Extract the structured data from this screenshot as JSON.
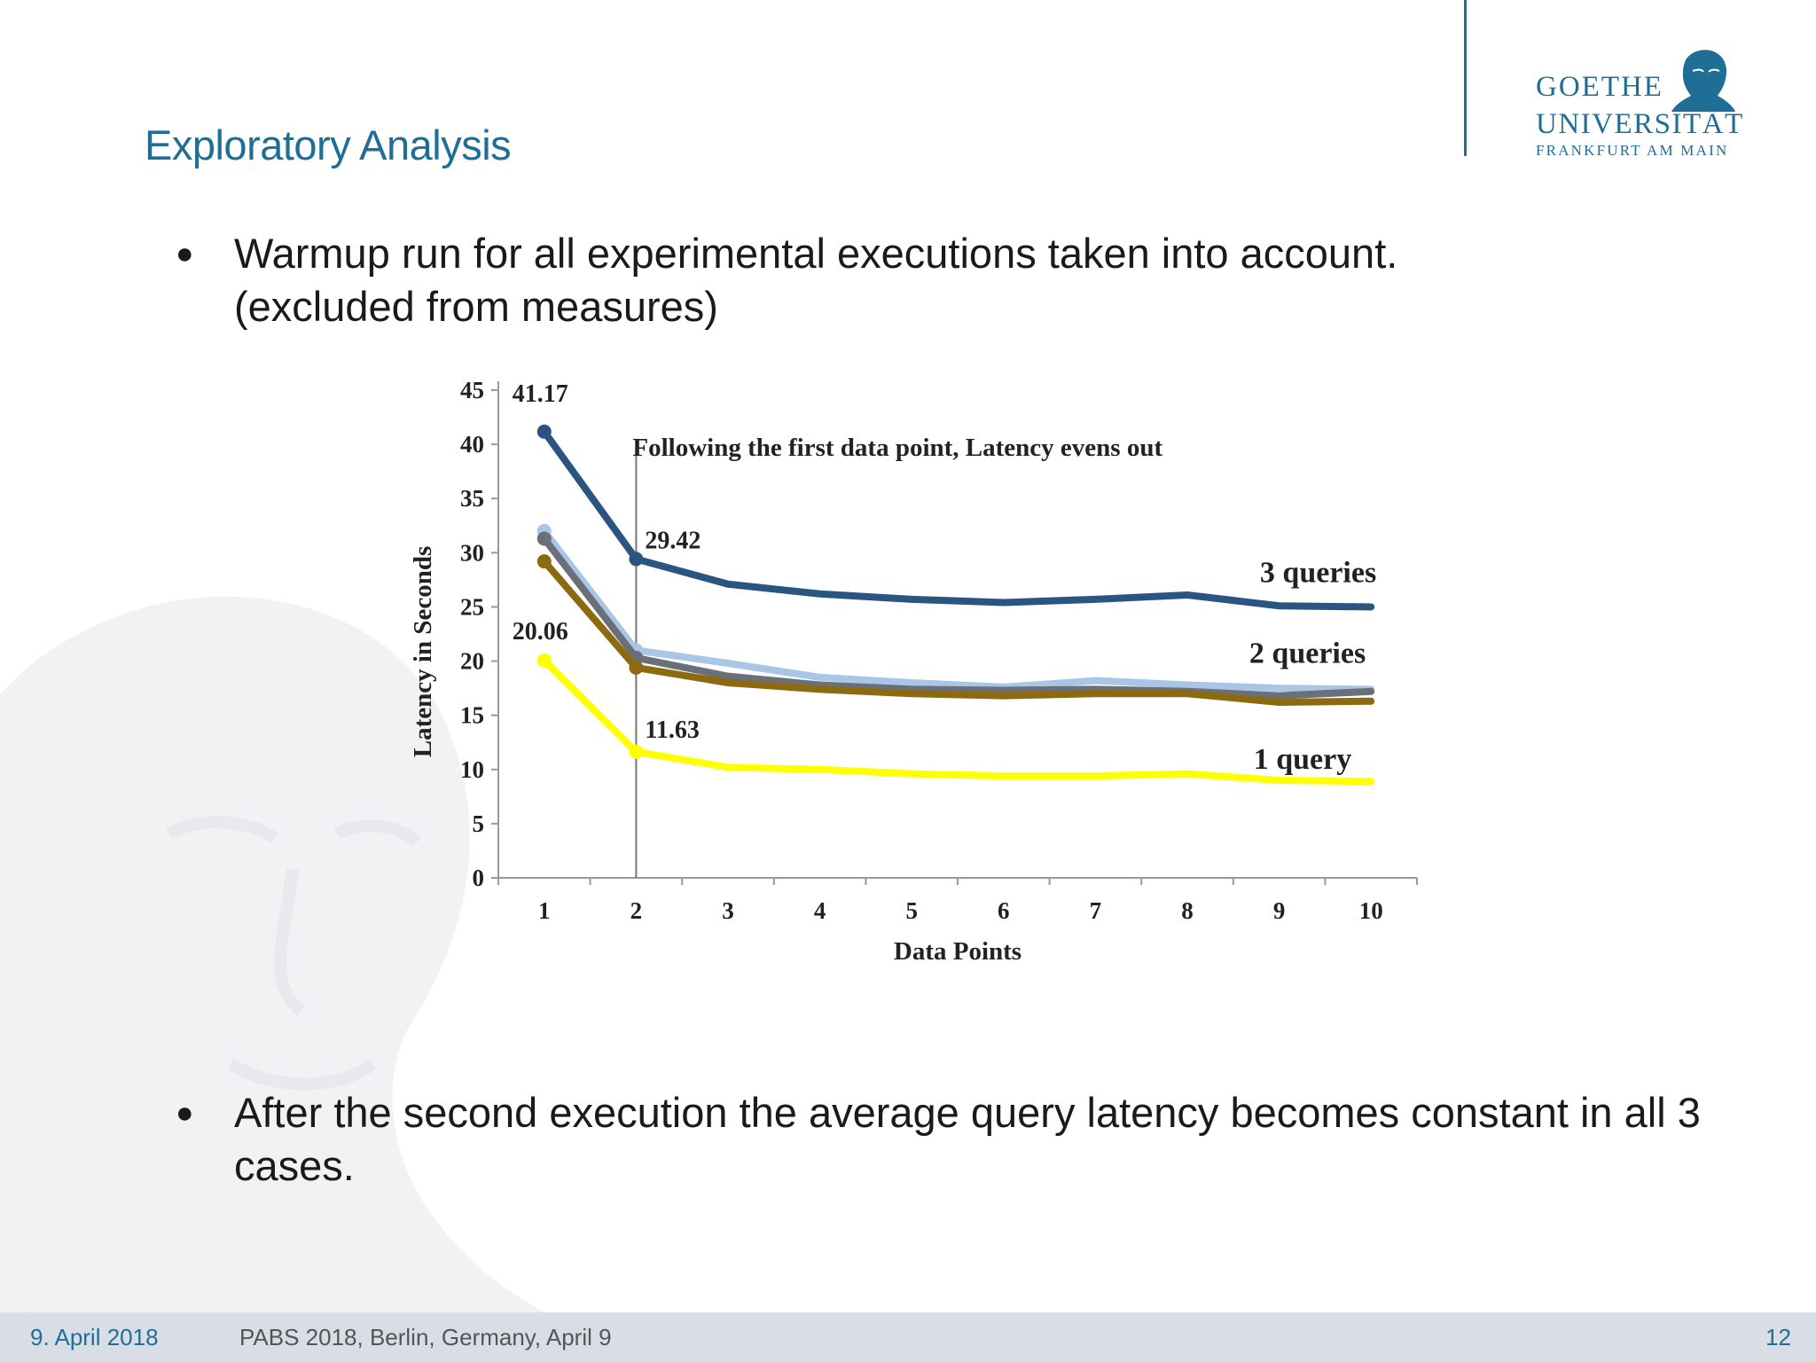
{
  "slide": {
    "title": "Exploratory Analysis",
    "bullets": [
      "Warmup run for all experimental executions taken into account. (excluded from measures)",
      "After the second execution the average query latency becomes constant in all 3 cases."
    ],
    "logo": {
      "line1": "GOETHE",
      "line2": "UNIVERSITÄT",
      "line3": "FRANKFURT AM MAIN"
    },
    "footer": {
      "date": "9. April 2018",
      "conference": "PABS 2018, Berlin, Germany, April 9",
      "page": "12"
    },
    "colors": {
      "accent": "#1f6e96",
      "footer_bg": "#d8dde6"
    }
  },
  "chart_data": {
    "type": "line",
    "title": "",
    "xlabel": "Data Points",
    "ylabel": "Latency in Seconds",
    "x": [
      1,
      2,
      3,
      4,
      5,
      6,
      7,
      8,
      9,
      10
    ],
    "ylim": [
      0,
      45
    ],
    "yticks": [
      0,
      5,
      10,
      15,
      20,
      25,
      30,
      35,
      40,
      45
    ],
    "grid": false,
    "series": [
      {
        "name": "3 queries",
        "color": "#2a5580",
        "values": [
          41.17,
          29.42,
          27.1,
          26.2,
          25.7,
          25.4,
          25.7,
          26.1,
          25.1,
          25.0
        ]
      },
      {
        "color": "#a9c6e6",
        "values": [
          32.0,
          21.0,
          19.8,
          18.5,
          18.0,
          17.6,
          18.2,
          17.8,
          17.5,
          17.4
        ]
      },
      {
        "color": "#6a6f78",
        "values": [
          31.3,
          20.3,
          18.6,
          17.8,
          17.4,
          17.3,
          17.4,
          17.2,
          16.8,
          17.2
        ]
      },
      {
        "color": "#8b6a10",
        "values": [
          29.2,
          19.4,
          18.0,
          17.4,
          17.0,
          16.8,
          17.0,
          17.0,
          16.2,
          16.3
        ]
      },
      {
        "name": "1 query",
        "color": "#ffff00",
        "values": [
          20.06,
          11.63,
          10.2,
          10.0,
          9.6,
          9.4,
          9.4,
          9.6,
          9.0,
          8.9
        ]
      }
    ],
    "series_labels": [
      "3 queries",
      "2 queries",
      "1 query"
    ],
    "data_labels": [
      "41.17",
      "29.42",
      "20.06",
      "11.63"
    ],
    "annotation": "Following  the first data point,  Latency  evens out",
    "vline_x": 2
  }
}
